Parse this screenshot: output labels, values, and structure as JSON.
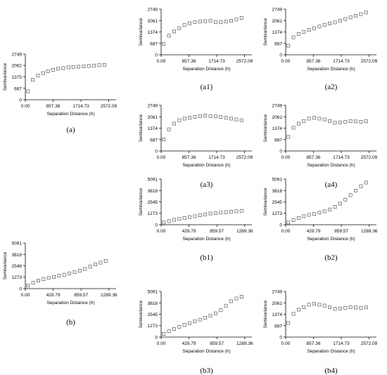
{
  "chart_data": [
    {
      "type": "scatter",
      "caption": "(a)",
      "xlabel": "Separation Distance (h)",
      "ylabel": "Semivariance",
      "xlim": [
        0,
        2800
      ],
      "ylim": [
        0,
        2749
      ],
      "xticks": [
        0,
        857.36,
        1714.73,
        2572.09
      ],
      "xtick_labels": [
        "0.00",
        "857.36",
        "1714.73",
        "2572.09"
      ],
      "yticks": [
        0,
        687,
        1375,
        2062,
        2749
      ],
      "ytick_labels": [
        "0",
        "687",
        "1375",
        "2062",
        "2749"
      ],
      "x": [
        80,
        230,
        390,
        550,
        700,
        860,
        1010,
        1170,
        1330,
        1480,
        1640,
        1800,
        1960,
        2120,
        2280,
        2440
      ],
      "y": [
        510,
        1200,
        1450,
        1600,
        1720,
        1800,
        1870,
        1900,
        1950,
        1970,
        1990,
        2010,
        2030,
        2060,
        2080,
        2100
      ]
    },
    {
      "type": "scatter",
      "caption": "(a1)",
      "xlabel": "Separation Distance (h)",
      "ylabel": "Semivariance",
      "xlim": [
        0,
        2800
      ],
      "ylim": [
        0,
        2749
      ],
      "xticks": [
        0,
        857.36,
        1714.73,
        2572.09
      ],
      "xtick_labels": [
        "0.00",
        "857.36",
        "1714.73",
        "2572.09"
      ],
      "yticks": [
        0,
        687,
        1374,
        2061,
        2749
      ],
      "ytick_labels": [
        "0",
        "687",
        "1374",
        "2061",
        "2749"
      ],
      "x": [
        80,
        240,
        400,
        560,
        720,
        880,
        1040,
        1200,
        1360,
        1520,
        1680,
        1840,
        2000,
        2160,
        2320,
        2480
      ],
      "y": [
        650,
        1150,
        1400,
        1600,
        1800,
        1900,
        1970,
        2000,
        2020,
        2050,
        1980,
        1960,
        2000,
        2050,
        2120,
        2220
      ]
    },
    {
      "type": "scatter",
      "caption": "(a2)",
      "xlabel": "Separation Distance (h)",
      "ylabel": "Semivariance",
      "xlim": [
        0,
        2800
      ],
      "ylim": [
        0,
        2749
      ],
      "xticks": [
        0,
        857.36,
        1714.73,
        2572.09
      ],
      "xtick_labels": [
        "0.00",
        "857.36",
        "1714.73",
        "2572.09"
      ],
      "yticks": [
        0,
        687,
        1374,
        2061,
        2749
      ],
      "ytick_labels": [
        "0",
        "687",
        "1374",
        "2061",
        "2749"
      ],
      "x": [
        80,
        240,
        400,
        560,
        720,
        880,
        1040,
        1200,
        1360,
        1520,
        1680,
        1840,
        2000,
        2160,
        2320,
        2480
      ],
      "y": [
        550,
        1050,
        1250,
        1380,
        1500,
        1600,
        1700,
        1800,
        1880,
        1950,
        2050,
        2150,
        2250,
        2350,
        2450,
        2550
      ]
    },
    {
      "type": "scatter",
      "caption": "(a3)",
      "xlabel": "Separation Distance (h)",
      "ylabel": "Semivariance",
      "xlim": [
        0,
        2800
      ],
      "ylim": [
        0,
        2749
      ],
      "xticks": [
        0,
        857.36,
        1714.73,
        2572.09
      ],
      "xtick_labels": [
        "0.00",
        "857.36",
        "1714.73",
        "2572.09"
      ],
      "yticks": [
        0,
        687,
        1374,
        2061,
        2749
      ],
      "ytick_labels": [
        "0",
        "687",
        "1374",
        "2061",
        "2749"
      ],
      "x": [
        80,
        240,
        400,
        560,
        720,
        880,
        1040,
        1200,
        1360,
        1520,
        1680,
        1840,
        2000,
        2160,
        2320,
        2480
      ],
      "y": [
        700,
        1300,
        1650,
        1850,
        1950,
        2000,
        2050,
        2100,
        2130,
        2100,
        2080,
        2050,
        2000,
        1950,
        1900,
        1850
      ]
    },
    {
      "type": "scatter",
      "caption": "(a4)",
      "xlabel": "Separation Distance (h)",
      "ylabel": "Semivariance",
      "xlim": [
        0,
        2800
      ],
      "ylim": [
        0,
        2749
      ],
      "xticks": [
        0,
        857.36,
        1714.73,
        2572.09
      ],
      "xtick_labels": [
        "0.00",
        "857.36",
        "1714.73",
        "2572.09"
      ],
      "yticks": [
        0,
        687,
        1374,
        2061,
        2749
      ],
      "ytick_labels": [
        "0",
        "687",
        "1374",
        "2061",
        "2749"
      ],
      "x": [
        80,
        240,
        400,
        560,
        720,
        880,
        1040,
        1200,
        1360,
        1520,
        1680,
        1840,
        2000,
        2160,
        2320,
        2480
      ],
      "y": [
        850,
        1400,
        1650,
        1800,
        1950,
        2000,
        1950,
        1900,
        1800,
        1700,
        1720,
        1760,
        1800,
        1780,
        1760,
        1790
      ]
    },
    {
      "type": "scatter",
      "caption": "(b)",
      "xlabel": "Separation Distance (h)",
      "ylabel": "Semivariance",
      "xlim": [
        0,
        1400
      ],
      "ylim": [
        0,
        5091
      ],
      "xticks": [
        0,
        429.79,
        859.57,
        1289.36
      ],
      "xtick_labels": [
        "0.00",
        "429.79",
        "859.57",
        "1289.36"
      ],
      "yticks": [
        0,
        1273,
        2546,
        3818,
        5091
      ],
      "ytick_labels": [
        "0",
        "1273",
        "2546",
        "3818",
        "5091"
      ],
      "x": [
        40,
        120,
        200,
        280,
        360,
        440,
        520,
        600,
        680,
        760,
        840,
        920,
        1000,
        1080,
        1160,
        1240
      ],
      "y": [
        350,
        650,
        900,
        1050,
        1200,
        1300,
        1450,
        1550,
        1700,
        1850,
        2000,
        2200,
        2450,
        2700,
        2900,
        3100
      ]
    },
    {
      "type": "scatter",
      "caption": "(b1)",
      "xlabel": "Separation Distance (h)",
      "ylabel": "Semivariance",
      "xlim": [
        0,
        1400
      ],
      "ylim": [
        0,
        5091
      ],
      "xticks": [
        0,
        429.79,
        859.57,
        1289.36
      ],
      "xtick_labels": [
        "0.00",
        "429.79",
        "859.57",
        "1289.36"
      ],
      "yticks": [
        0,
        1273,
        2545,
        3818,
        5091
      ],
      "ytick_labels": [
        "0",
        "1273",
        "2545",
        "3818",
        "5091"
      ],
      "x": [
        40,
        120,
        200,
        280,
        360,
        440,
        520,
        600,
        680,
        760,
        840,
        920,
        1000,
        1080,
        1160,
        1240
      ],
      "y": [
        250,
        400,
        550,
        650,
        750,
        850,
        950,
        1050,
        1150,
        1250,
        1300,
        1350,
        1400,
        1450,
        1500,
        1550
      ]
    },
    {
      "type": "scatter",
      "caption": "(b2)",
      "xlabel": "Separation Distance (h)",
      "ylabel": "Semivariance",
      "xlim": [
        0,
        1400
      ],
      "ylim": [
        0,
        5091
      ],
      "xticks": [
        0,
        429.79,
        859.57,
        1289.36
      ],
      "xtick_labels": [
        "0.00",
        "429.79",
        "859.57",
        "1289.36"
      ],
      "yticks": [
        0,
        1273,
        2545,
        3818,
        5091
      ],
      "ytick_labels": [
        "0",
        "1273",
        "2545",
        "3818",
        "5091"
      ],
      "x": [
        40,
        120,
        200,
        280,
        360,
        440,
        520,
        600,
        680,
        760,
        840,
        920,
        1000,
        1080,
        1160,
        1240
      ],
      "y": [
        250,
        500,
        750,
        950,
        1100,
        1200,
        1350,
        1500,
        1700,
        2000,
        2350,
        2800,
        3300,
        3800,
        4300,
        4700
      ]
    },
    {
      "type": "scatter",
      "caption": "(b3)",
      "xlabel": "Separation Distance (h)",
      "ylabel": "Semivariance",
      "xlim": [
        0,
        1400
      ],
      "ylim": [
        0,
        5091
      ],
      "xticks": [
        0,
        429.79,
        859.57,
        1289.36
      ],
      "xtick_labels": [
        "0.00",
        "429.79",
        "859.57",
        "1289.36"
      ],
      "yticks": [
        0,
        1273,
        2545,
        3818,
        5091
      ],
      "ytick_labels": [
        "0",
        "1273",
        "2545",
        "3818",
        "5091"
      ],
      "x": [
        40,
        120,
        200,
        280,
        360,
        440,
        520,
        600,
        680,
        760,
        840,
        920,
        1000,
        1080,
        1160,
        1240
      ],
      "y": [
        350,
        650,
        900,
        1150,
        1350,
        1550,
        1750,
        1950,
        2150,
        2400,
        2650,
        3000,
        3500,
        4000,
        4300,
        4500
      ]
    },
    {
      "type": "scatter",
      "caption": "(b4)",
      "xlabel": "Separation Distance (h)",
      "ylabel": "Semivariance",
      "xlim": [
        0,
        2800
      ],
      "ylim": [
        0,
        2749
      ],
      "xticks": [
        0,
        857.36,
        1714.73,
        2572.09
      ],
      "xtick_labels": [
        "0.00",
        "857.36",
        "1714.73",
        "2572.09"
      ],
      "yticks": [
        0,
        687,
        1374,
        2061,
        2749
      ],
      "ytick_labels": [
        "0",
        "687",
        "1374",
        "2061",
        "2749"
      ],
      "x": [
        80,
        240,
        400,
        560,
        720,
        880,
        1040,
        1200,
        1360,
        1520,
        1680,
        1840,
        2000,
        2160,
        2320,
        2480
      ],
      "y": [
        850,
        1400,
        1650,
        1800,
        1950,
        2000,
        1950,
        1900,
        1800,
        1700,
        1720,
        1760,
        1800,
        1780,
        1760,
        1790
      ]
    }
  ]
}
